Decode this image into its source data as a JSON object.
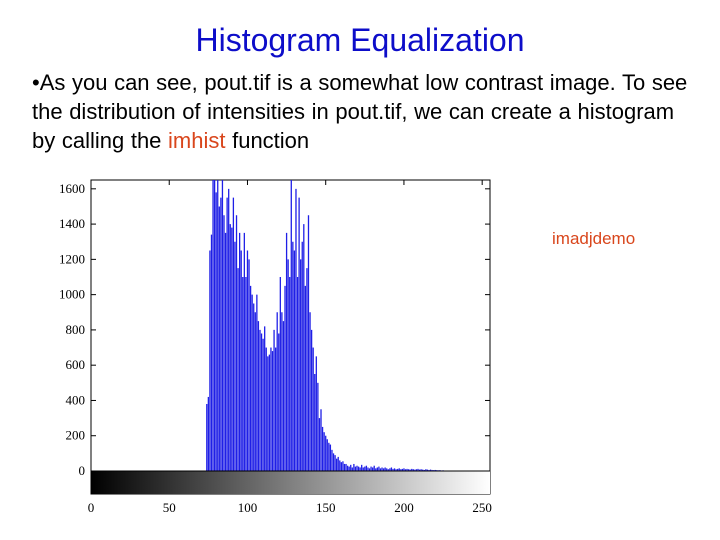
{
  "slide": {
    "title": "Histogram Equalization",
    "bullet": "•",
    "text_before": "As you can see, pout.tif is a somewhat low contrast image. To see the distribution of intensities in pout.tif, we can create a histogram by calling the ",
    "function_name": "imhist",
    "text_after": " function",
    "side_label": "imadjdemo"
  },
  "colors": {
    "title": "#0d0dc9",
    "accent": "#d9461c",
    "bars": "#1f1fe6"
  },
  "chart_data": {
    "type": "bar",
    "title": "",
    "xlabel": "",
    "ylabel": "",
    "xlim": [
      0,
      255
    ],
    "ylim": [
      0,
      1650
    ],
    "xticks": [
      0,
      50,
      100,
      150,
      200,
      250
    ],
    "yticks": [
      0,
      200,
      400,
      600,
      800,
      1000,
      1200,
      1400,
      1600
    ],
    "colorbar": "grayscale gradient 0 (black) to 255 (white)",
    "series": [
      {
        "x": [
          74,
          75,
          76,
          77,
          78,
          79,
          80,
          81,
          82,
          83,
          84,
          85,
          86,
          87,
          88,
          89,
          90,
          91,
          92,
          93,
          94,
          95,
          96,
          97,
          98,
          99,
          100,
          101,
          102,
          103,
          104,
          105,
          106,
          107,
          108,
          109,
          110,
          111,
          112,
          113,
          114,
          115,
          116,
          117,
          118,
          119,
          120,
          121,
          122,
          123,
          124,
          125,
          126,
          127,
          128,
          129,
          130,
          131,
          132,
          133,
          134,
          135,
          136,
          137,
          138,
          139,
          140,
          141,
          142,
          143,
          144,
          145,
          146,
          147,
          148,
          149,
          150,
          151,
          152,
          153,
          154,
          155,
          156,
          157,
          158,
          159,
          160,
          161,
          162,
          163,
          164,
          165,
          166,
          167,
          168,
          169,
          170,
          171,
          172,
          173,
          174,
          175,
          176,
          177,
          178,
          179,
          180,
          181,
          182,
          183,
          184,
          185,
          186,
          187,
          188,
          189,
          190,
          191,
          192,
          193,
          194,
          195,
          196,
          197,
          198,
          199,
          200,
          201,
          202,
          203,
          204,
          205,
          206,
          207,
          208,
          209,
          210,
          211,
          212,
          213,
          214,
          215,
          216,
          217,
          218,
          219,
          220,
          221,
          222,
          223,
          224,
          225
        ],
        "values": [
          380,
          420,
          1250,
          1340,
          1650,
          1650,
          1580,
          1650,
          1500,
          1550,
          1650,
          1450,
          1350,
          1550,
          1600,
          1400,
          1380,
          1550,
          1300,
          1450,
          1150,
          1350,
          1250,
          1100,
          1350,
          1100,
          1250,
          1200,
          1050,
          1000,
          950,
          900,
          1000,
          850,
          800,
          780,
          750,
          820,
          700,
          650,
          660,
          700,
          680,
          800,
          700,
          900,
          780,
          1100,
          900,
          850,
          1050,
          1350,
          1200,
          1100,
          1650,
          1300,
          1250,
          1600,
          1100,
          1550,
          1200,
          1300,
          1400,
          1050,
          1150,
          1450,
          900,
          800,
          700,
          550,
          650,
          500,
          300,
          350,
          250,
          220,
          200,
          180,
          160,
          150,
          120,
          100,
          90,
          70,
          80,
          60,
          50,
          55,
          40,
          40,
          30,
          25,
          35,
          20,
          40,
          25,
          30,
          25,
          20,
          35,
          20,
          25,
          30,
          20,
          15,
          25,
          20,
          30,
          15,
          20,
          25,
          15,
          20,
          15,
          20,
          15,
          10,
          15,
          20,
          12,
          15,
          10,
          12,
          15,
          10,
          12,
          15,
          10,
          12,
          10,
          8,
          12,
          10,
          8,
          10,
          12,
          8,
          10,
          8,
          6,
          10,
          8,
          6,
          8,
          6,
          5,
          6,
          5,
          4,
          5,
          3,
          4
        ]
      }
    ]
  }
}
